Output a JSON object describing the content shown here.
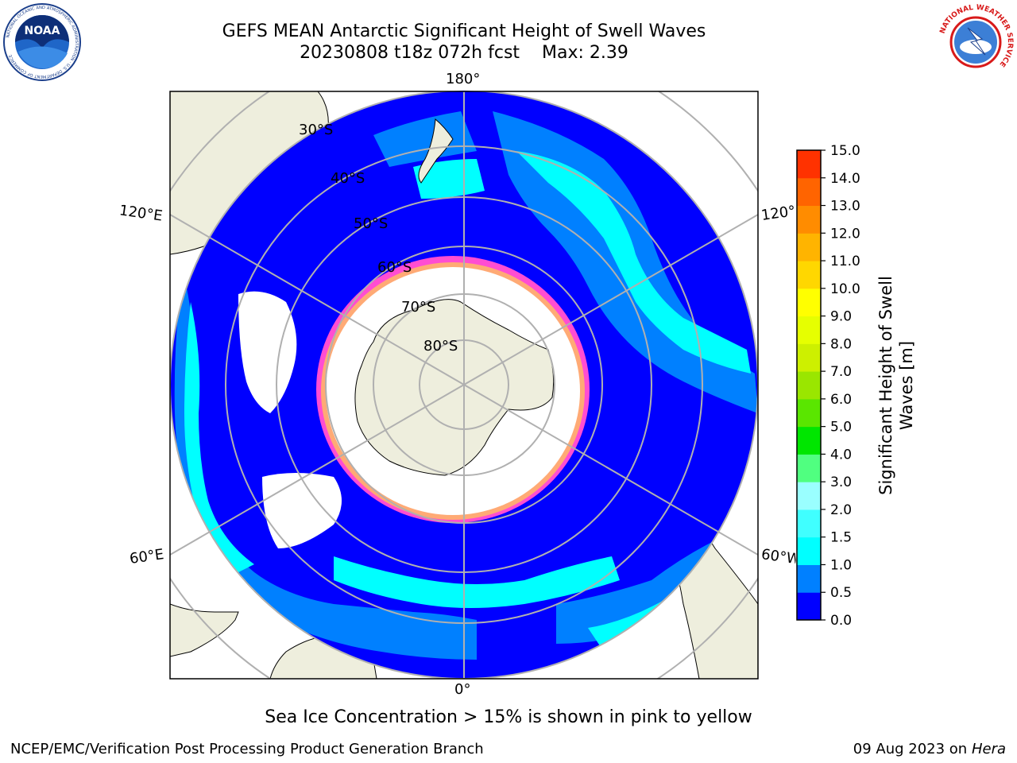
{
  "header": {
    "title": "GEFS MEAN Antarctic Significant Height of Swell Waves",
    "subtitle_date": "20230808 t18z 072h fcst",
    "subtitle_max": "Max: 2.39"
  },
  "logos": {
    "left_main": "NOAA",
    "left_ring": "NATIONAL OCEANIC AND ATMOSPHERIC ADMINISTRATION · U.S. DEPARTMENT OF COMMERCE",
    "right_ring": "NATIONAL WEATHER SERVICE"
  },
  "map": {
    "longitude_labels": {
      "top": "180°",
      "bottom": "0°",
      "upper_left": "120°E",
      "lower_left": "60°E",
      "upper_right": "120°W",
      "lower_right": "60°W"
    },
    "latitude_labels": [
      "30°S",
      "40°S",
      "50°S",
      "60°S",
      "70°S",
      "80°S"
    ],
    "colors": {
      "land": "#eeeedd",
      "sea_ice_edge_pink": "#ff4dd2",
      "sea_ice_edge_yellow": "#ffd24d",
      "ice_interior": "#ffffff",
      "graticule": "#b0b0b0"
    }
  },
  "colorbar": {
    "title": "Significant Height of Swell Waves [m]",
    "ticks": [
      "0.0",
      "0.5",
      "1.0",
      "1.5",
      "2.0",
      "3.0",
      "4.0",
      "5.0",
      "6.0",
      "7.0",
      "8.0",
      "9.0",
      "10.0",
      "11.0",
      "12.0",
      "13.0",
      "14.0",
      "15.0"
    ],
    "colors": [
      "#0000ff",
      "#0080ff",
      "#00ffff",
      "#40ffff",
      "#9affff",
      "#50ff80",
      "#00e600",
      "#5ae600",
      "#9ae600",
      "#cdf000",
      "#e6ff00",
      "#ffff00",
      "#ffd700",
      "#ffb400",
      "#ff8c00",
      "#ff6400",
      "#ff3200",
      "#ff0000"
    ]
  },
  "footer": {
    "caption": "Sea Ice Concentration > 15% is shown in pink to yellow",
    "left": "NCEP/EMC/Verification Post Processing Product Generation Branch",
    "right_date": "09 Aug 2023 on",
    "right_host": "Hera"
  }
}
